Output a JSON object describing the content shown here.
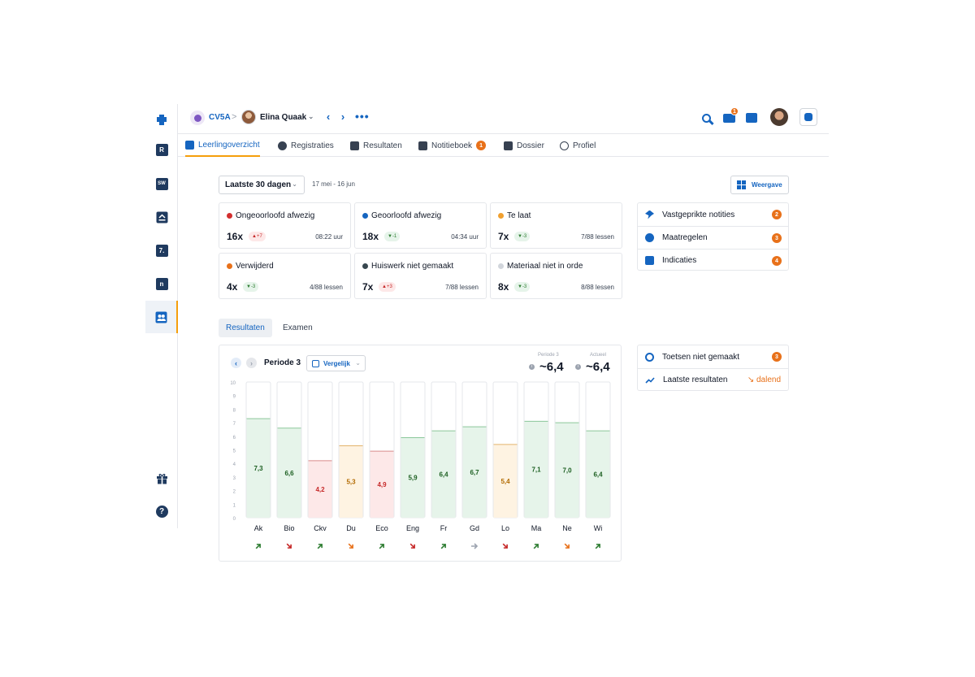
{
  "colors": {
    "accent": "#1565c0",
    "badge": "#e8711a",
    "tab_indicator": "#f59e0b",
    "bar_good_fill": "#e6f4ea",
    "bar_good_line": "#8bc79a",
    "bar_bad_fill": "#fde8e8",
    "bar_bad_line": "#d98b8b",
    "bar_mid_fill": "#fef3e2",
    "bar_mid_line": "#e3b36b",
    "trend_up": "#2e7d32",
    "trend_down_bad": "#c62828",
    "trend_down_mid": "#e8711a",
    "trend_flat": "#9ca3af"
  },
  "rail": {
    "items": [
      {
        "icon": "puzzle-logo-icon"
      },
      {
        "icon": "r-icon",
        "glyph": "R"
      },
      {
        "icon": "sw-icon",
        "glyph": "SW"
      },
      {
        "icon": "tray-icon"
      },
      {
        "icon": "grade-icon",
        "glyph": "7."
      },
      {
        "icon": "notebook-icon",
        "glyph": "n"
      },
      {
        "icon": "students-icon",
        "active": true
      },
      {
        "icon": "gift-icon"
      },
      {
        "icon": "help-icon",
        "glyph": "?"
      }
    ]
  },
  "header": {
    "class_name": "CV5A",
    "separator": ">",
    "student_name": "Elina Quaak",
    "caret": "⌄",
    "prev": "‹",
    "next": "›",
    "more": "•••",
    "mail_count": "1"
  },
  "tabs": [
    {
      "label": "Leerlingoverzicht",
      "icon": "layers-icon",
      "active": true
    },
    {
      "label": "Registraties",
      "icon": "check-circle-icon"
    },
    {
      "label": "Resultaten",
      "icon": "grade-icon"
    },
    {
      "label": "Notitieboek",
      "icon": "notebook-icon",
      "badge": "1"
    },
    {
      "label": "Dossier",
      "icon": "folder-icon"
    },
    {
      "label": "Profiel",
      "icon": "smiley-icon"
    }
  ],
  "filter": {
    "period": "Laatste 30 dagen",
    "chevron": "⌄",
    "date_range": "17 mei - 16 jun",
    "view_button": "Weergave"
  },
  "stats": [
    {
      "label": "Ongeoorloofd afwezig",
      "dot": "#d32f2f",
      "count": "16x",
      "delta": "▲+7",
      "dir": "up",
      "meta": "08:22 uur"
    },
    {
      "label": "Geoorloofd afwezig",
      "dot": "#1565c0",
      "count": "18x",
      "delta": "▼-1",
      "dir": "down",
      "meta": "04:34 uur"
    },
    {
      "label": "Te laat",
      "dot": "#f0a030",
      "count": "7x",
      "delta": "▼-3",
      "dir": "down",
      "meta": "7/88 lessen"
    },
    {
      "label": "Verwijderd",
      "dot": "#e8711a",
      "count": "4x",
      "delta": "▼-3",
      "dir": "down",
      "meta": "4/88 lessen"
    },
    {
      "label": "Huiswerk niet gemaakt",
      "dot": "#37474f",
      "count": "7x",
      "delta": "▲+3",
      "dir": "up",
      "meta": "7/88 lessen"
    },
    {
      "label": "Materiaal niet in orde",
      "dot": "#d1d5db",
      "count": "8x",
      "delta": "▼-3",
      "dir": "down",
      "meta": "8/88 lessen"
    }
  ],
  "side_list": [
    {
      "label": "Vastgeprikte notities",
      "icon": "pin-icon",
      "badge": "2"
    },
    {
      "label": "Maatregelen",
      "icon": "alert-icon",
      "badge": "3"
    },
    {
      "label": "Indicaties",
      "icon": "clipboard-icon",
      "badge": "4"
    }
  ],
  "result_tabs": [
    {
      "label": "Resultaten",
      "active": true
    },
    {
      "label": "Examen"
    }
  ],
  "results_panel": {
    "prev": "‹",
    "next": "›",
    "period_title": "Periode 3",
    "compare_label": "Vergelijk",
    "chevron": "⌄",
    "avg_period_caption": "Periode 3",
    "avg_period_value": "~6,4",
    "avg_current_caption": "Actueel",
    "avg_current_value": "~6,4",
    "info": "i"
  },
  "chart_data": {
    "type": "bar",
    "categories": [
      "Ak",
      "Bio",
      "Ckv",
      "Du",
      "Eco",
      "Eng",
      "Fr",
      "Gd",
      "Lo",
      "Ma",
      "Ne",
      "Wi"
    ],
    "values": [
      7.3,
      6.6,
      4.2,
      5.3,
      4.9,
      5.9,
      6.4,
      6.7,
      5.4,
      7.1,
      7.0,
      6.4
    ],
    "labels": [
      "7,3",
      "6,6",
      "4,2",
      "5,3",
      "4,9",
      "5,9",
      "6,4",
      "6,7",
      "5,4",
      "7,1",
      "7,0",
      "6,4"
    ],
    "status": [
      "good",
      "good",
      "bad",
      "mid",
      "bad",
      "good",
      "good",
      "good",
      "mid",
      "good",
      "good",
      "good"
    ],
    "trends": [
      "up",
      "down",
      "up",
      "down-mid",
      "up",
      "down",
      "up",
      "flat",
      "down",
      "up",
      "down-mid",
      "up"
    ],
    "yticks": [
      "0",
      "1",
      "2",
      "3",
      "4",
      "5",
      "6",
      "7",
      "8",
      "9",
      "10"
    ],
    "ylim": [
      0,
      10
    ],
    "grid": false,
    "legend": "none"
  },
  "side_list2": [
    {
      "label": "Toetsen niet gemaakt",
      "icon": "clock-icon",
      "badge": "3"
    },
    {
      "label": "Laatste resultaten",
      "icon": "trend-icon",
      "trend_label": "↘ dalend"
    }
  ]
}
